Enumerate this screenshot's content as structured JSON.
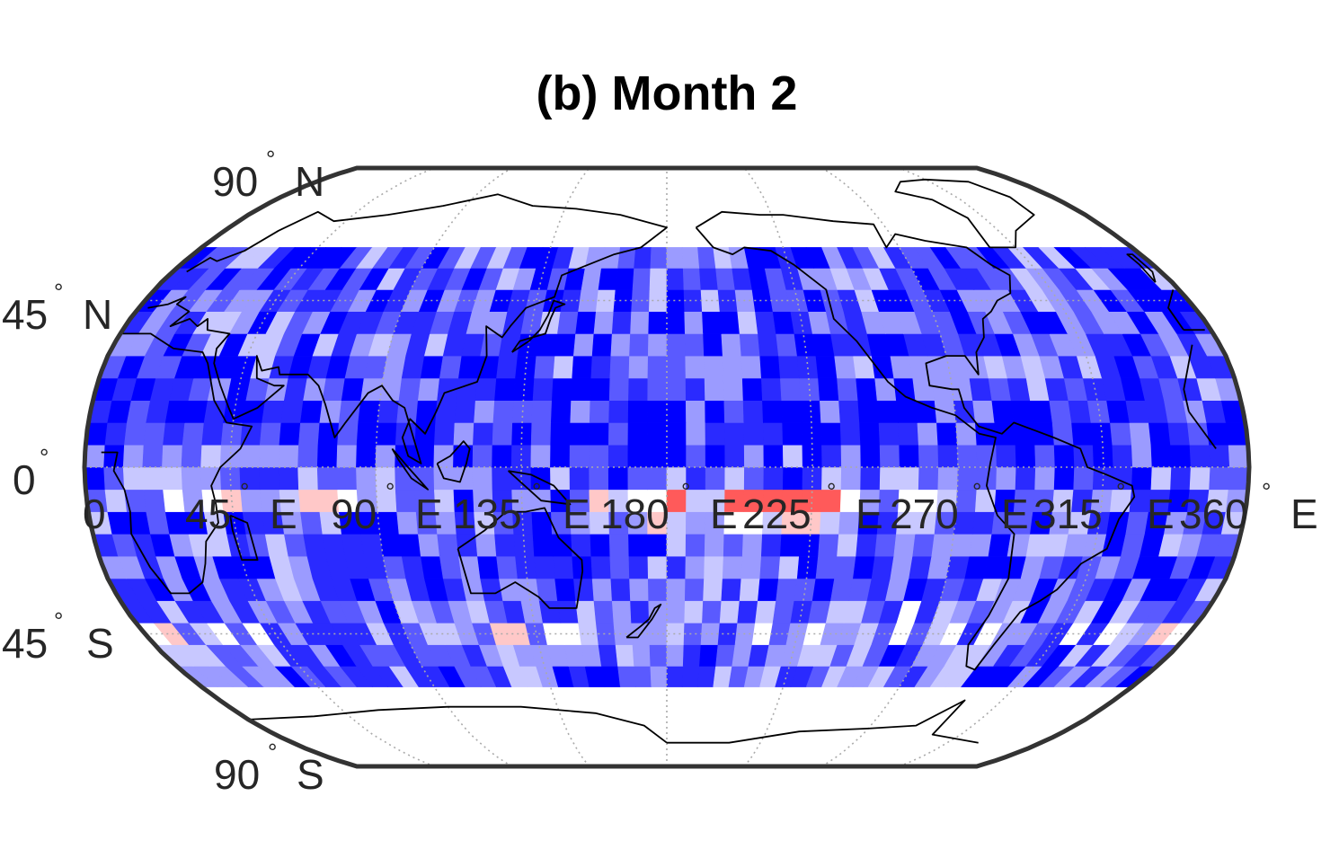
{
  "title": "(b) Month 2",
  "map": {
    "projection": "robinson",
    "center_lon": 180,
    "data_lat_range": [
      -60,
      60
    ],
    "frame_color": "#333333",
    "grid_color": "#aaaaaa",
    "coast_color": "#000000",
    "colors": [
      "#0000ff",
      "#2a2aff",
      "#5a5aff",
      "#9b9bff",
      "#c8c8ff",
      "#ffffff",
      "#ffc8c8",
      "#ff9b9b",
      "#ff5a5a",
      "#ff0000"
    ]
  },
  "lat_labels": [
    {
      "deg": "90",
      "dir": "N"
    },
    {
      "deg": "45",
      "dir": "N"
    },
    {
      "deg": "0",
      "dir": ""
    },
    {
      "deg": "45",
      "dir": "S"
    },
    {
      "deg": "90",
      "dir": "S"
    }
  ],
  "lon_labels": [
    {
      "deg": "0",
      "dir": "E"
    },
    {
      "deg": "45",
      "dir": "E"
    },
    {
      "deg": "90",
      "dir": "E"
    },
    {
      "deg": "135",
      "dir": "E"
    },
    {
      "deg": "180",
      "dir": "E"
    },
    {
      "deg": "225",
      "dir": "E"
    },
    {
      "deg": "270",
      "dir": "E"
    },
    {
      "deg": "315",
      "dir": "E"
    },
    {
      "deg": "360",
      "dir": "E"
    }
  ],
  "degree_symbol": "°"
}
